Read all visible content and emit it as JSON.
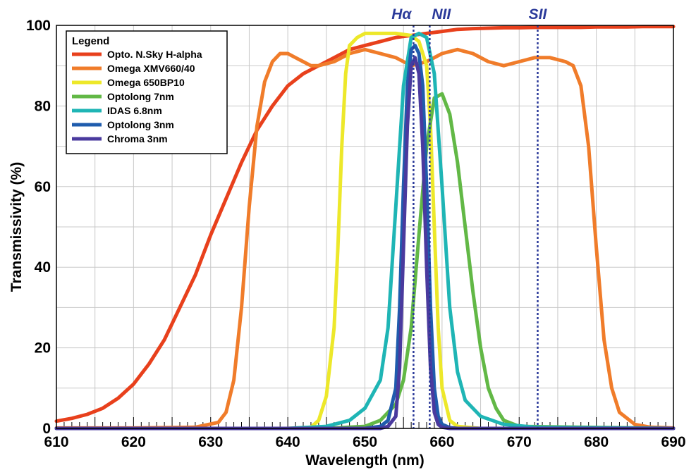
{
  "chart_data": {
    "type": "line",
    "xlabel": "Wavelength (nm)",
    "ylabel": "Transmissivity (%)",
    "xlim": [
      610,
      690
    ],
    "ylim": [
      0,
      100
    ],
    "x_ticks": [
      610,
      620,
      630,
      640,
      650,
      660,
      670,
      680,
      690
    ],
    "y_ticks": [
      0,
      20,
      40,
      60,
      80,
      100
    ],
    "grid": true,
    "legend_title": "Legend",
    "legend_position": "top-left",
    "reference_lines": [
      {
        "label": "Hα",
        "x": 656.3,
        "color": "#2b3a9a"
      },
      {
        "label": "NII",
        "x": 658.4,
        "color": "#2b3a9a"
      },
      {
        "label": "SII",
        "x": 672.4,
        "color": "#2b3a9a"
      }
    ],
    "series": [
      {
        "name": "Opto. N.Sky H-alpha",
        "color": "#e8401c",
        "x": [
          610,
          612,
          614,
          616,
          618,
          620,
          622,
          624,
          626,
          628,
          630,
          632,
          634,
          636,
          638,
          640,
          642,
          644,
          646,
          648,
          650,
          652,
          654,
          656,
          658,
          660,
          662,
          664,
          666,
          668,
          670,
          672,
          674,
          676,
          678,
          680,
          682,
          684,
          686,
          688,
          690
        ],
        "y": [
          1.8,
          2.5,
          3.5,
          5,
          7.5,
          11,
          16,
          22,
          30,
          38,
          48,
          57,
          66,
          74,
          80,
          85,
          88,
          90,
          92,
          94,
          95,
          96,
          97,
          97.5,
          98,
          98.5,
          99,
          99.2,
          99.3,
          99.4,
          99.4,
          99.5,
          99.5,
          99.5,
          99.5,
          99.6,
          99.6,
          99.6,
          99.7,
          99.7,
          99.7
        ]
      },
      {
        "name": "Omega XMV660/40",
        "color": "#f07c2a",
        "x": [
          610,
          620,
          628,
          631,
          632,
          633,
          634,
          635,
          636,
          637,
          638,
          639,
          640,
          641,
          642,
          643,
          644,
          646,
          648,
          650,
          652,
          654,
          656,
          658,
          660,
          662,
          664,
          666,
          668,
          670,
          672,
          674,
          676,
          677,
          678,
          679,
          680,
          681,
          682,
          683,
          685,
          687,
          690
        ],
        "y": [
          0.1,
          0.1,
          0.3,
          1.5,
          4,
          12,
          30,
          55,
          75,
          86,
          91,
          93,
          93,
          92,
          91,
          90,
          90,
          91,
          93,
          94,
          93,
          92,
          90,
          91,
          93,
          94,
          93,
          91,
          90,
          91,
          92,
          92,
          91,
          90,
          85,
          70,
          45,
          22,
          10,
          4,
          1,
          0.3,
          0.1
        ]
      },
      {
        "name": "Omega 650BP10",
        "color": "#ede82a",
        "x": [
          610,
          640,
          643,
          644,
          645,
          646,
          646.5,
          647,
          647.5,
          648,
          649,
          650,
          652,
          654,
          656,
          657,
          658,
          658.5,
          659,
          659.5,
          660,
          661,
          662,
          665,
          690
        ],
        "y": [
          0,
          0,
          0.3,
          2,
          8,
          25,
          45,
          70,
          88,
          95,
          97,
          98,
          98,
          98,
          97.5,
          96,
          90,
          75,
          50,
          25,
          10,
          2,
          0.5,
          0,
          0
        ]
      },
      {
        "name": "Optolong 7nm",
        "color": "#62b846",
        "x": [
          610,
          645,
          650,
          652,
          654,
          655,
          656,
          657,
          658,
          659,
          660,
          661,
          662,
          663,
          664,
          665,
          666,
          667,
          668,
          670,
          690
        ],
        "y": [
          0,
          0,
          0.5,
          2,
          6,
          12,
          25,
          48,
          70,
          82,
          83,
          78,
          66,
          50,
          34,
          20,
          10,
          5,
          2,
          0.5,
          0
        ]
      },
      {
        "name": "IDAS 6.8nm",
        "color": "#1fb5b5",
        "x": [
          610,
          640,
          645,
          648,
          650,
          652,
          653,
          654,
          655,
          656,
          657,
          658,
          659,
          660,
          661,
          662,
          663,
          665,
          668,
          672,
          690
        ],
        "y": [
          0,
          0,
          0.5,
          2,
          5,
          12,
          25,
          55,
          85,
          97,
          98,
          97,
          88,
          60,
          30,
          14,
          7,
          3,
          1,
          0.3,
          0
        ]
      },
      {
        "name": "Optolong 3nm",
        "color": "#1f5cad",
        "x": [
          610,
          650,
          652,
          653,
          654,
          654.5,
          655,
          655.5,
          656,
          656.5,
          657,
          657.5,
          658,
          658.5,
          659,
          659.5,
          660,
          661,
          662,
          690
        ],
        "y": [
          0,
          0,
          0.5,
          2,
          10,
          30,
          60,
          85,
          94,
          95,
          93,
          85,
          60,
          30,
          10,
          3,
          1,
          0.2,
          0,
          0
        ]
      },
      {
        "name": "Chroma 3nm",
        "color": "#4a3a9e",
        "x": [
          610,
          652,
          653,
          654,
          654.5,
          655,
          655.5,
          656,
          656.5,
          657,
          657.5,
          658,
          658.5,
          659,
          659.5,
          660,
          661,
          690
        ],
        "y": [
          0,
          0,
          0.5,
          3,
          15,
          45,
          75,
          90,
          92,
          88,
          70,
          40,
          15,
          4,
          1,
          0.3,
          0,
          0
        ]
      }
    ]
  }
}
